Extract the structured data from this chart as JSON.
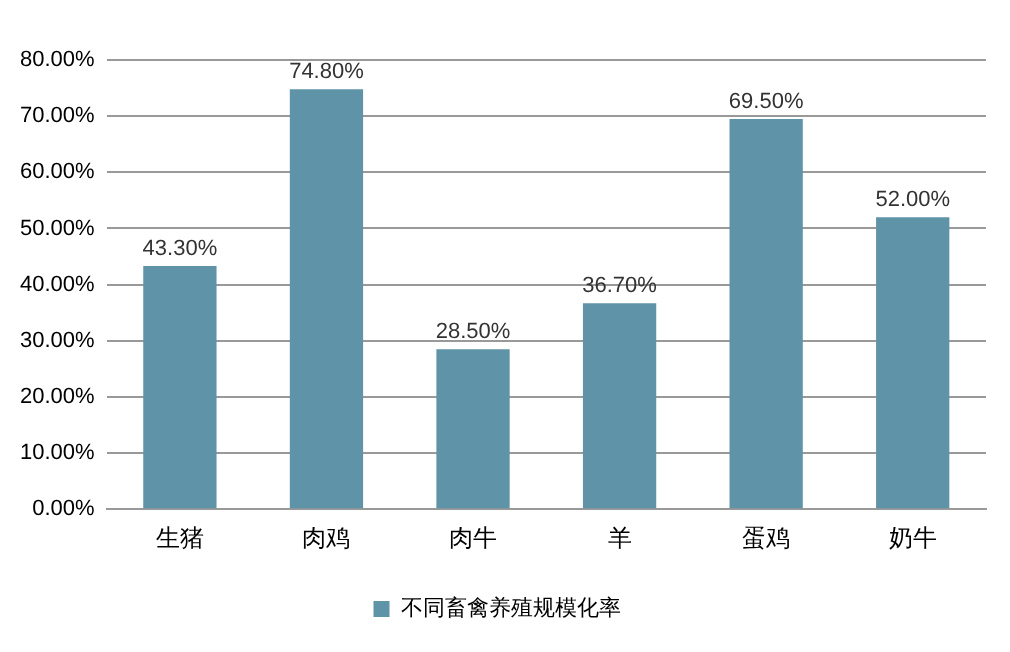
{
  "chart_data": {
    "type": "bar",
    "categories": [
      "生猪",
      "肉鸡",
      "肉牛",
      "羊",
      "蛋鸡",
      "奶牛"
    ],
    "series": [
      {
        "name": "不同畜禽养殖规模化率",
        "color": "#5f93a8",
        "values": [
          43.3,
          74.8,
          28.5,
          36.7,
          69.5,
          52.0
        ],
        "value_labels": [
          "43.30%",
          "74.80%",
          "28.50%",
          "36.70%",
          "69.50%",
          "52.00%"
        ]
      }
    ],
    "ylim": [
      0,
      80
    ],
    "yticks": [
      {
        "value": 0,
        "label": "0.00%"
      },
      {
        "value": 10,
        "label": "10.00%"
      },
      {
        "value": 20,
        "label": "20.00%"
      },
      {
        "value": 30,
        "label": "30.00%"
      },
      {
        "value": 40,
        "label": "40.00%"
      },
      {
        "value": 50,
        "label": "50.00%"
      },
      {
        "value": 60,
        "label": "60.00%"
      },
      {
        "value": 70,
        "label": "70.00%"
      },
      {
        "value": 80,
        "label": "80.00%"
      }
    ],
    "grid": "y",
    "legend": "bottom"
  }
}
